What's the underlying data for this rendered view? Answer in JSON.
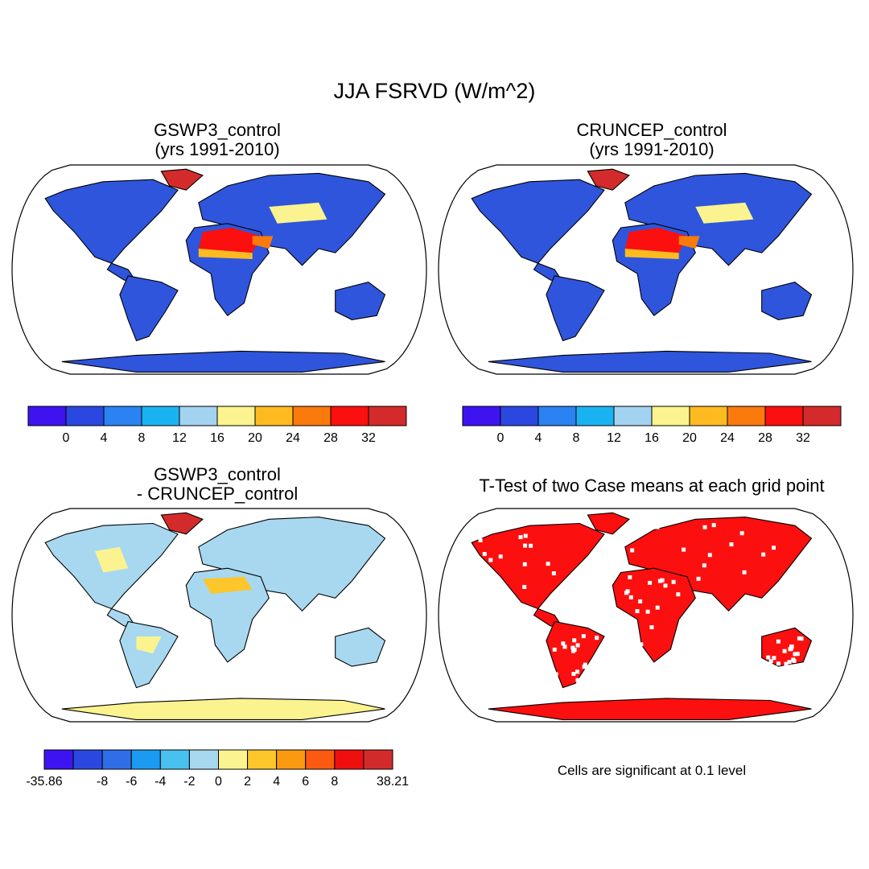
{
  "title": "JJA FSRVD (W/m^2)",
  "panels": [
    {
      "id": "gswp3",
      "title_lines": [
        "GSWP3_control",
        "(yrs 1991-2010)"
      ],
      "scheme": "abs"
    },
    {
      "id": "cruncep",
      "title_lines": [
        "CRUNCEP_control",
        "(yrs 1991-2010)"
      ],
      "scheme": "abs"
    },
    {
      "id": "diff",
      "title_lines": [
        "GSWP3_control",
        "- CRUNCEP_control"
      ],
      "scheme": "diff"
    },
    {
      "id": "ttest",
      "title_lines": [
        "T-Test of two Case means at each grid point"
      ],
      "scheme": "ttest"
    }
  ],
  "colorbars": {
    "abs": {
      "colors": [
        "#3d14f0",
        "#2a48e0",
        "#2b82f2",
        "#1ab3f2",
        "#a3d3f0",
        "#fbf38f",
        "#fdbb21",
        "#fb7a0c",
        "#fb0f0f",
        "#d32b2b"
      ],
      "labels": [
        "0",
        "4",
        "8",
        "12",
        "16",
        "20",
        "24",
        "28",
        "32"
      ]
    },
    "diff": {
      "colors": [
        "#3d14f0",
        "#2a48e0",
        "#2f6ee6",
        "#1a9af0",
        "#48c0f0",
        "#a8d8f0",
        "#fbf38f",
        "#fdc62a",
        "#fb9a10",
        "#fb5a10",
        "#f00f0f",
        "#d32b2b"
      ],
      "labels": [
        "-35.86",
        "-8",
        "-6",
        "-4",
        "-2",
        "0",
        "2",
        "4",
        "6",
        "8",
        "38.21"
      ]
    }
  },
  "significance_note": "Cells are significant at 0.1 level",
  "palette": {
    "ocean": "#ffffff",
    "land_abs": "#2f55dc",
    "ttest_land": "#fb0f0f"
  }
}
